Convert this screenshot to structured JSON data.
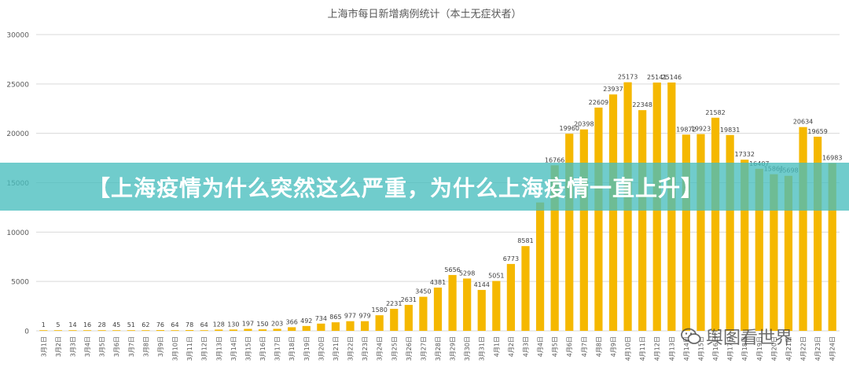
{
  "banner": {
    "text": "【上海疫情为什么突然这么严重，为什么上海疫情一直上升】"
  },
  "watermark": {
    "text": "舆图看世界",
    "icon": "wechat-icon"
  },
  "colors": {
    "bar": "#f5b800",
    "grid": "#d9d9d9",
    "axis_text": "#595959",
    "label_text": "#404040",
    "banner": "#48bebe"
  },
  "chart_data": {
    "type": "bar",
    "title": "上海市每日新增病例统计（本土无症状者）",
    "ylim": [
      0,
      30000
    ],
    "yticks": [
      0,
      5000,
      10000,
      15000,
      20000,
      25000,
      30000
    ],
    "grid": true,
    "categories": [
      "3月1日",
      "3月2日",
      "3月3日",
      "3月4日",
      "3月5日",
      "3月6日",
      "3月7日",
      "3月8日",
      "3月9日",
      "3月10日",
      "3月11日",
      "3月12日",
      "3月13日",
      "3月14日",
      "3月15日",
      "3月16日",
      "3月17日",
      "3月18日",
      "3月19日",
      "3月20日",
      "3月21日",
      "3月22日",
      "3月23日",
      "3月24日",
      "3月25日",
      "3月26日",
      "3月27日",
      "3月28日",
      "3月29日",
      "3月30日",
      "3月31日",
      "4月1日",
      "4月2日",
      "4月3日",
      "4月4日",
      "4月5日",
      "4月6日",
      "4月7日",
      "4月8日",
      "4月9日",
      "4月10日",
      "4月11日",
      "4月12日",
      "4月13日",
      "4月14日",
      "4月15日",
      "4月16日",
      "4月17日",
      "4月18日",
      "4月19日",
      "4月20日",
      "4月21日",
      "4月22日",
      "4月23日",
      "4月24日"
    ],
    "values": [
      1,
      5,
      14,
      16,
      28,
      45,
      51,
      62,
      76,
      64,
      78,
      64,
      128,
      130,
      197,
      150,
      203,
      366,
      492,
      734,
      865,
      977,
      979,
      1580,
      2231,
      2631,
      3450,
      4381,
      5656,
      5298,
      4144,
      5051,
      6773,
      8581,
      13000,
      16766,
      19960,
      20398,
      22609,
      23937,
      25173,
      22348,
      25141,
      25146,
      19872,
      19923,
      21582,
      19831,
      17332,
      16407,
      15861,
      15698,
      20634,
      19659,
      16983
    ],
    "labels": [
      "1",
      "5",
      "14",
      "16",
      "28",
      "45",
      "51",
      "62",
      "76",
      "64",
      "78",
      "64",
      "128",
      "130",
      "197",
      "150",
      "203",
      "366",
      "492",
      "734",
      "865",
      "977",
      "979",
      "1580",
      "2231",
      "2631",
      "3450",
      "4381",
      "5656",
      "5298",
      "4144",
      "5051",
      "6773",
      "8581",
      "",
      "16766",
      "19960",
      "20398",
      "22609",
      "23937",
      "25173",
      "22348",
      "25141",
      "25146",
      "19872",
      "19923",
      "21582",
      "19831",
      "17332",
      "16407",
      "15861",
      "15698",
      "20634",
      "19659",
      "16983"
    ]
  }
}
